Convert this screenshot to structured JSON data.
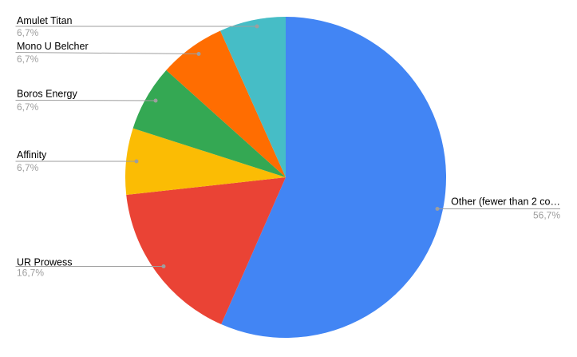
{
  "chart": {
    "background": "#ffffff",
    "leader_line_color": "#9e9e9e",
    "leader_dot_color": "#9e9e9e",
    "label_color": "#000000",
    "pct_color": "#9e9e9e"
  },
  "chart_data": {
    "type": "pie",
    "title": "",
    "legend_position": "labeled-callouts",
    "start_angle_deg": 0,
    "direction": "clockwise",
    "value_format": "percent-comma-decimal",
    "slices": [
      {
        "label": "Other (fewer than 2 co…",
        "value": 56.7,
        "display_pct": "56,7%",
        "color": "#4285f4"
      },
      {
        "label": "UR Prowess",
        "value": 16.7,
        "display_pct": "16,7%",
        "color": "#ea4335"
      },
      {
        "label": "Affinity",
        "value": 6.7,
        "display_pct": "6,7%",
        "color": "#fbbc04"
      },
      {
        "label": "Boros Energy",
        "value": 6.7,
        "display_pct": "6,7%",
        "color": "#34a853"
      },
      {
        "label": "Mono U Belcher",
        "value": 6.7,
        "display_pct": "6,7%",
        "color": "#ff6d01"
      },
      {
        "label": "Amulet Titan",
        "value": 6.7,
        "display_pct": "6,7%",
        "color": "#46bdc6"
      }
    ]
  }
}
